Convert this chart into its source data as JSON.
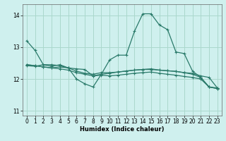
{
  "xlabel": "Humidex (Indice chaleur)",
  "background_color": "#cff0ee",
  "grid_color": "#aad8cc",
  "line_color": "#2a7a6a",
  "xlim": [
    -0.5,
    23.5
  ],
  "ylim": [
    10.85,
    14.35
  ],
  "yticks": [
    11,
    12,
    13,
    14
  ],
  "xticks": [
    0,
    1,
    2,
    3,
    4,
    5,
    6,
    7,
    8,
    9,
    10,
    11,
    12,
    13,
    14,
    15,
    16,
    17,
    18,
    19,
    20,
    21,
    22,
    23
  ],
  "lines": [
    [
      13.2,
      12.9,
      12.45,
      12.4,
      12.45,
      12.35,
      12.0,
      11.85,
      11.75,
      12.15,
      12.6,
      12.75,
      12.75,
      13.5,
      14.05,
      14.05,
      13.7,
      13.55,
      12.85,
      12.8,
      12.25,
      12.05,
      11.75,
      11.7
    ],
    [
      12.45,
      12.42,
      12.38,
      12.35,
      12.38,
      12.35,
      12.32,
      12.3,
      12.1,
      12.15,
      12.18,
      12.22,
      12.25,
      12.28,
      12.3,
      12.3,
      12.28,
      12.26,
      12.24,
      12.2,
      12.15,
      12.05,
      11.75,
      11.72
    ],
    [
      12.42,
      12.4,
      12.45,
      12.45,
      12.42,
      12.35,
      12.25,
      12.18,
      12.15,
      12.2,
      12.2,
      12.22,
      12.25,
      12.28,
      12.3,
      12.32,
      12.28,
      12.26,
      12.24,
      12.2,
      12.18,
      12.1,
      12.05,
      11.72
    ],
    [
      12.45,
      12.42,
      12.38,
      12.35,
      12.32,
      12.28,
      12.2,
      12.15,
      12.1,
      12.12,
      12.1,
      12.12,
      12.15,
      12.18,
      12.2,
      12.22,
      12.18,
      12.15,
      12.12,
      12.08,
      12.05,
      12.0,
      11.75,
      11.7
    ]
  ]
}
